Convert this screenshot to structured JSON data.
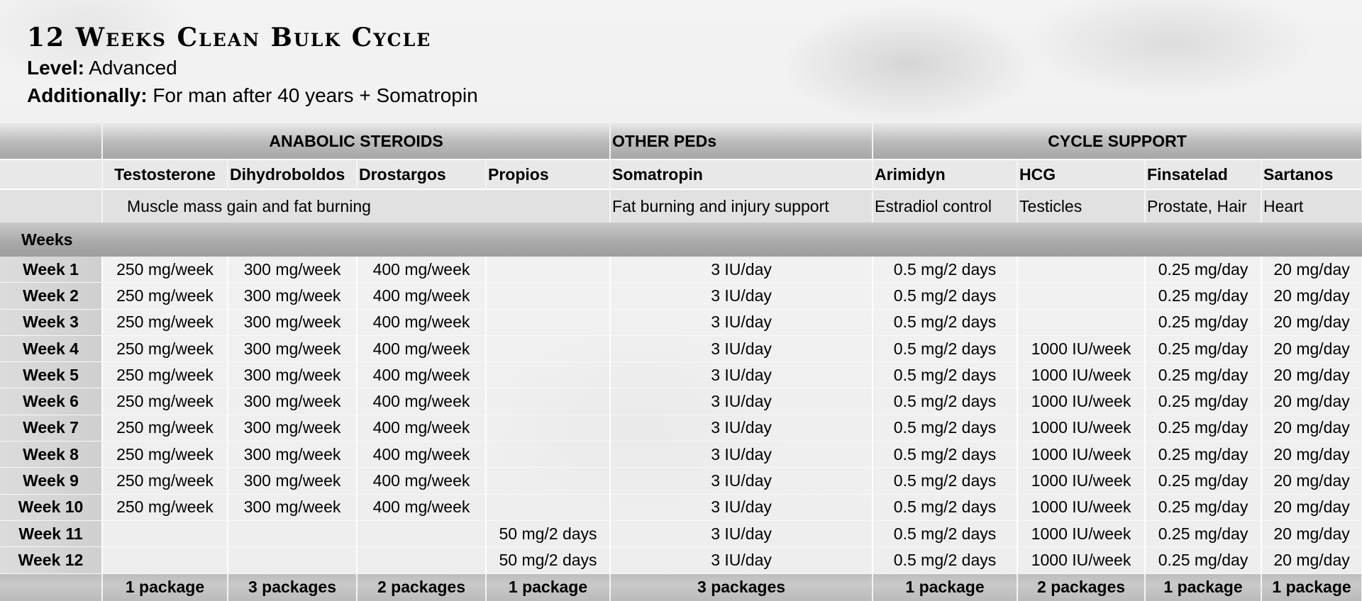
{
  "title": "12 Weeks Clean Bulk Cycle",
  "level": {
    "label": "Level:",
    "value": "Advanced"
  },
  "additionally": {
    "label": "Additionally:",
    "value": "For man after 40 years + Somatropin"
  },
  "groups": {
    "anabolic": "ANABOLIC STEROIDS",
    "other": "OTHER PEDs",
    "support": "CYCLE SUPPORT"
  },
  "compounds": [
    "Testosterone",
    "Dihydroboldos",
    "Drostargos",
    "Propios",
    "Somatropin",
    "Arimidyn",
    "HCG",
    "Finsatelad",
    "Sartanos"
  ],
  "purposes": {
    "anabolic": "Muscle mass gain and fat burning",
    "somatropin": "Fat burning and injury support",
    "arimidyn": "Estradiol control",
    "hcg": "Testicles",
    "finsatelad": "Prostate, Hair",
    "sartanos": "Heart"
  },
  "weeks_header": "Weeks",
  "rows": [
    {
      "week": "Week  1",
      "doses": [
        "250 mg/week",
        "300 mg/week",
        "400 mg/week",
        "",
        "3 IU/day",
        "0.5 mg/2 days",
        "",
        "0.25 mg/day",
        "20 mg/day"
      ]
    },
    {
      "week": "Week  2",
      "doses": [
        "250 mg/week",
        "300 mg/week",
        "400 mg/week",
        "",
        "3 IU/day",
        "0.5 mg/2 days",
        "",
        "0.25 mg/day",
        "20 mg/day"
      ]
    },
    {
      "week": "Week  3",
      "doses": [
        "250 mg/week",
        "300 mg/week",
        "400 mg/week",
        "",
        "3 IU/day",
        "0.5 mg/2 days",
        "",
        "0.25 mg/day",
        "20 mg/day"
      ]
    },
    {
      "week": "Week  4",
      "doses": [
        "250 mg/week",
        "300 mg/week",
        "400 mg/week",
        "",
        "3 IU/day",
        "0.5 mg/2 days",
        "1000 IU/week",
        "0.25 mg/day",
        "20 mg/day"
      ]
    },
    {
      "week": "Week  5",
      "doses": [
        "250 mg/week",
        "300 mg/week",
        "400 mg/week",
        "",
        "3 IU/day",
        "0.5 mg/2 days",
        "1000 IU/week",
        "0.25 mg/day",
        "20 mg/day"
      ]
    },
    {
      "week": "Week  6",
      "doses": [
        "250 mg/week",
        "300 mg/week",
        "400 mg/week",
        "",
        "3 IU/day",
        "0.5 mg/2 days",
        "1000 IU/week",
        "0.25 mg/day",
        "20 mg/day"
      ]
    },
    {
      "week": "Week  7",
      "doses": [
        "250 mg/week",
        "300 mg/week",
        "400 mg/week",
        "",
        "3 IU/day",
        "0.5 mg/2 days",
        "1000 IU/week",
        "0.25 mg/day",
        "20 mg/day"
      ]
    },
    {
      "week": "Week  8",
      "doses": [
        "250 mg/week",
        "300 mg/week",
        "400 mg/week",
        "",
        "3 IU/day",
        "0.5 mg/2 days",
        "1000 IU/week",
        "0.25 mg/day",
        "20 mg/day"
      ]
    },
    {
      "week": "Week  9",
      "doses": [
        "250 mg/week",
        "300 mg/week",
        "400 mg/week",
        "",
        "3 IU/day",
        "0.5 mg/2 days",
        "1000 IU/week",
        "0.25 mg/day",
        "20 mg/day"
      ]
    },
    {
      "week": "Week  10",
      "doses": [
        "250 mg/week",
        "300 mg/week",
        "400 mg/week",
        "",
        "3 IU/day",
        "0.5 mg/2 days",
        "1000 IU/week",
        "0.25 mg/day",
        "20 mg/day"
      ]
    },
    {
      "week": "Week  11",
      "doses": [
        "",
        "",
        "",
        "50 mg/2 days",
        "3 IU/day",
        "0.5 mg/2 days",
        "1000 IU/week",
        "0.25 mg/day",
        "20 mg/day"
      ]
    },
    {
      "week": "Week  12",
      "doses": [
        "",
        "",
        "",
        "50 mg/2 days",
        "3 IU/day",
        "0.5 mg/2 days",
        "1000 IU/week",
        "0.25 mg/day",
        "20 mg/day"
      ]
    }
  ],
  "totals": [
    "1 package",
    "3 packages",
    "2 packages",
    "1 package",
    "3 packages",
    "1 package",
    "2 packages",
    "1 package",
    "1 package"
  ]
}
